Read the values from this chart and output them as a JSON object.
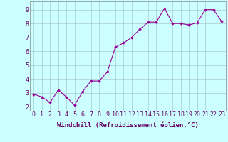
{
  "x": [
    0,
    1,
    2,
    3,
    4,
    5,
    6,
    7,
    8,
    9,
    10,
    11,
    12,
    13,
    14,
    15,
    16,
    17,
    18,
    19,
    20,
    21,
    22,
    23
  ],
  "y": [
    2.9,
    2.7,
    2.3,
    3.2,
    2.7,
    2.1,
    3.1,
    3.85,
    3.85,
    4.5,
    6.3,
    6.6,
    7.0,
    7.6,
    8.1,
    8.1,
    9.1,
    8.0,
    8.0,
    7.9,
    8.05,
    9.0,
    9.0,
    8.15
  ],
  "line_color": "#990099",
  "marker": "D",
  "markersize": 1.8,
  "linewidth": 0.8,
  "bg_color": "#ccffff",
  "grid_color": "#aacccc",
  "xlabel": "Windchill (Refroidissement éolien,°C)",
  "ylabel_ticks": [
    2,
    3,
    4,
    5,
    6,
    7,
    8,
    9
  ],
  "xtick_labels": [
    "0",
    "1",
    "2",
    "3",
    "4",
    "5",
    "6",
    "7",
    "8",
    "9",
    "10",
    "11",
    "12",
    "13",
    "14",
    "15",
    "16",
    "17",
    "18",
    "19",
    "20",
    "21",
    "22",
    "23"
  ],
  "xlim": [
    -0.5,
    23.5
  ],
  "ylim": [
    1.7,
    9.6
  ],
  "xlabel_fontsize": 6.5,
  "tick_fontsize": 6.0,
  "spine_color": "#888888"
}
